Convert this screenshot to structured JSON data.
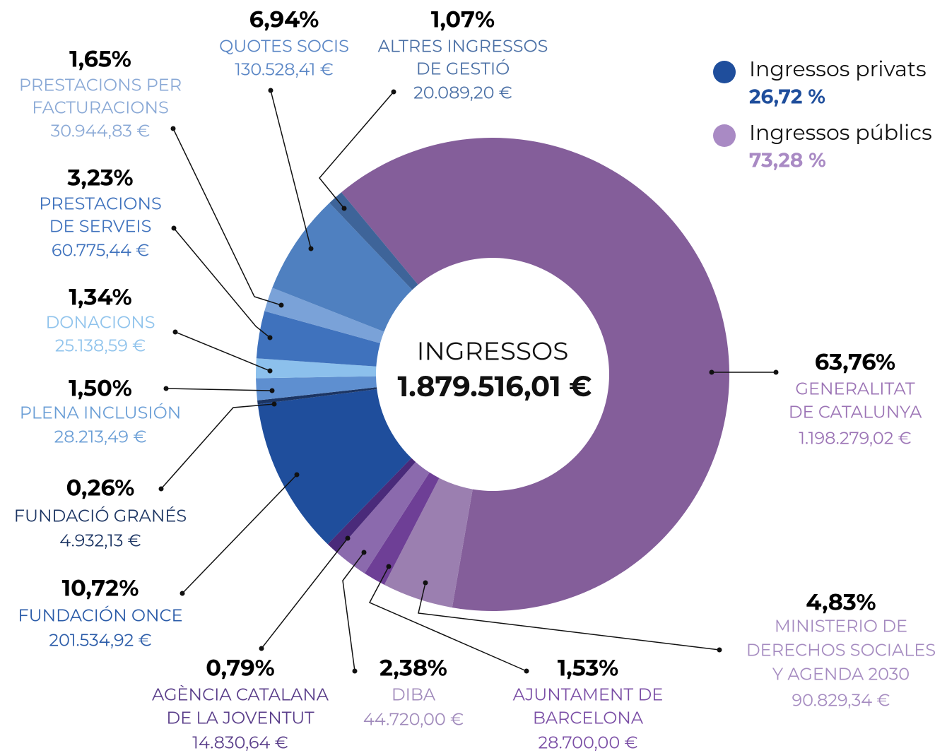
{
  "chart_data": {
    "type": "donut",
    "title": "INGRESSOS",
    "total_label": "1.879.516,01 €",
    "categories": [
      [
        "GENERALITAT",
        "DE CATALUNYA"
      ],
      [
        "MINISTERIO DE",
        "DERECHOS SOCIALES",
        "Y AGENDA 2030"
      ],
      [
        "AJUNTAMENT DE",
        "BARCELONA"
      ],
      [
        "DIBA"
      ],
      [
        "AGÈNCIA CATALANA",
        "DE LA JOVENTUT"
      ],
      [
        "FUNDACIÓN ONCE"
      ],
      [
        "FUNDACIÓ GRANÉS"
      ],
      [
        "PLENA INCLUSIÓN"
      ],
      [
        "DONACIONS"
      ],
      [
        "PRESTACIONS",
        "DE SERVEIS"
      ],
      [
        "PRESTACIONS PER",
        "FACTURACIONS"
      ],
      [
        "QUOTES SOCIS"
      ],
      [
        "ALTRES INGRESSOS",
        "DE GESTIÓ"
      ]
    ],
    "values": [
      63.76,
      4.83,
      1.53,
      2.38,
      0.79,
      10.72,
      0.26,
      1.5,
      1.34,
      3.23,
      1.65,
      6.94,
      1.07
    ],
    "value_labels": [
      "63,76%",
      "4,83%",
      "1,53%",
      "2,38%",
      "0,79%",
      "10,72%",
      "0,26%",
      "1,50%",
      "1,34%",
      "3,23%",
      "1,65%",
      "6,94%",
      "1,07%"
    ],
    "amounts": [
      "1.198.279,02 €",
      "90.829,34 €",
      "28.700,00 €",
      "44.720,00 €",
      "14.830,64 €",
      "201.534,92 €",
      "4.932,13 €",
      "28.213,49 €",
      "25.138,59 €",
      "60.775,44 €",
      "30.944,83 €",
      "130.528,41 €",
      "20.089,20 €"
    ],
    "colors": [
      "#845e9a",
      "#9b7fb0",
      "#6e3f96",
      "#8b6aad",
      "#4a2a7a",
      "#1f4e9c",
      "#1c3563",
      "#5e8fd0",
      "#8cc0ec",
      "#3f72bd",
      "#7aa2d8",
      "#4f80c0",
      "#3e6499"
    ],
    "label_colors": [
      "#9b73b5",
      "#a58bc0",
      "#7b4fa6",
      "#a08abb",
      "#5a3e8a",
      "#2a5ba8",
      "#1c3563",
      "#6a9ed6",
      "#8fc3ec",
      "#3f72bd",
      "#8aa9d6",
      "#5a86c5",
      "#4a6fa5"
    ],
    "groups": [
      {
        "name": "Ingressos privats",
        "color": "#1f4e9c",
        "value": 26.72,
        "value_label": "26,72 %"
      },
      {
        "name": "Ingressos públics",
        "color": "#a98ac4",
        "value": 73.28,
        "value_label": "73,28 %"
      }
    ]
  }
}
